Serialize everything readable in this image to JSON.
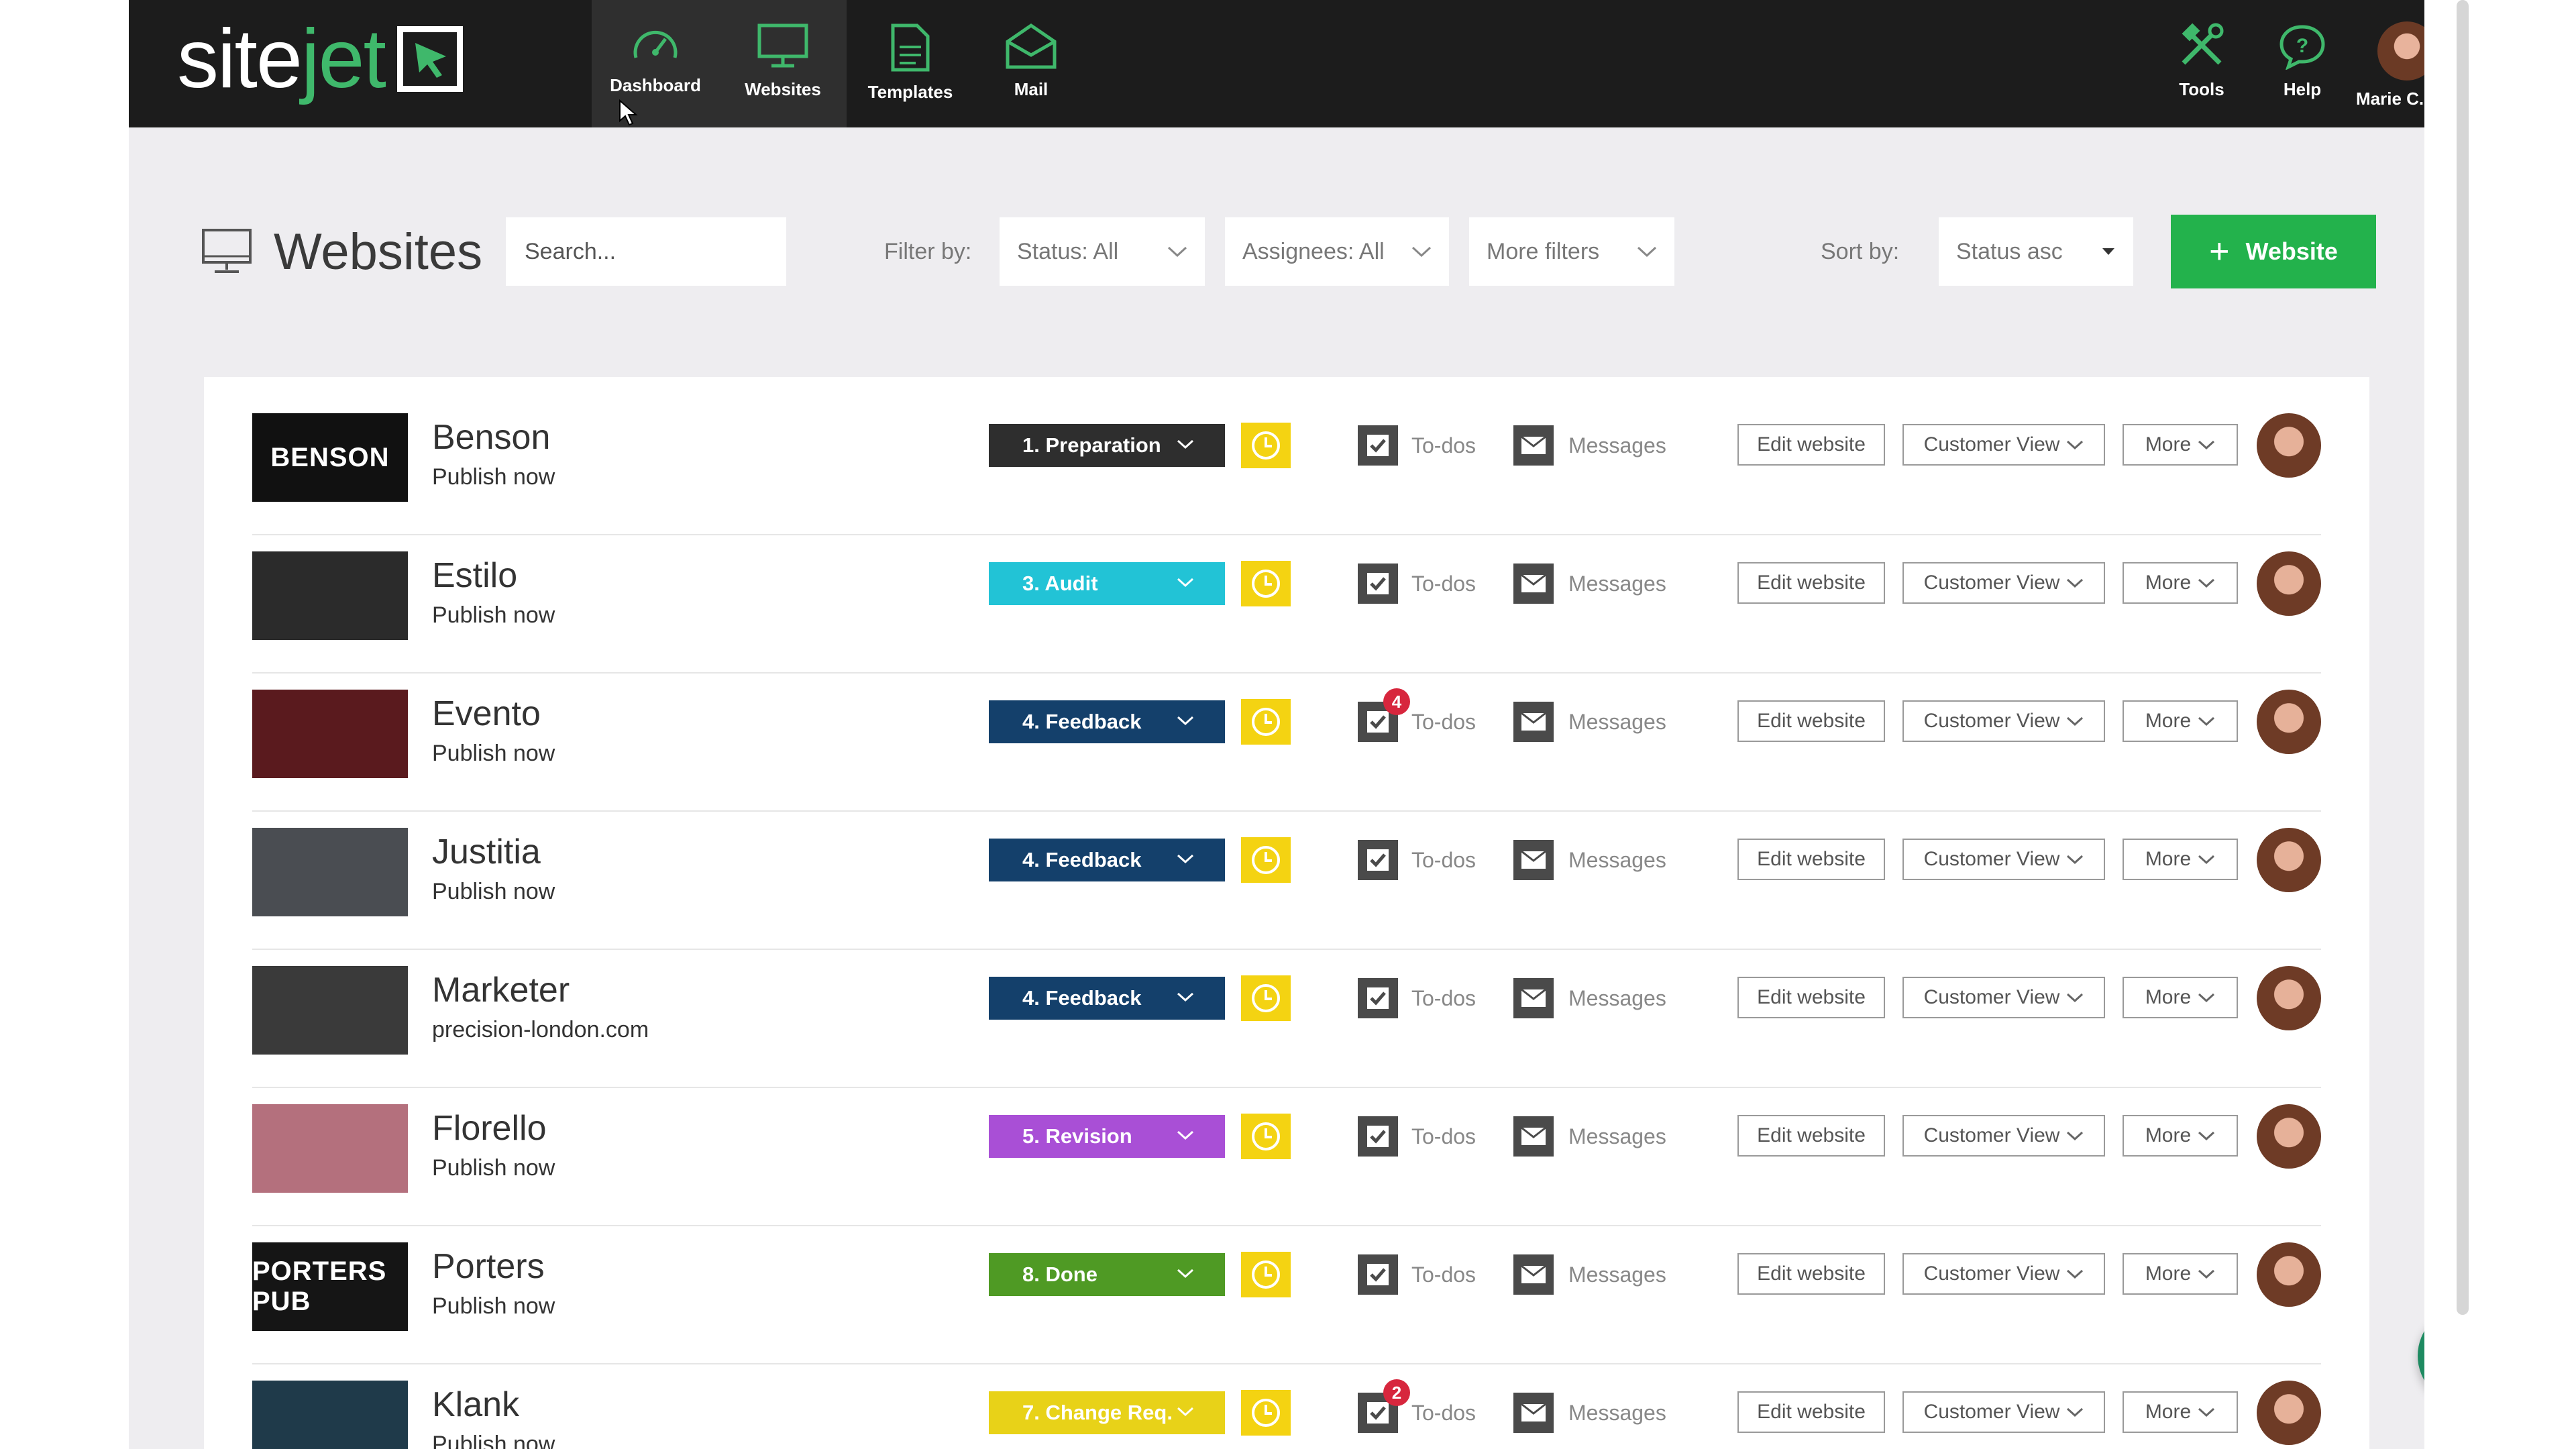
{
  "app": {
    "logo": {
      "part1": "site",
      "part2": "jet"
    },
    "nav": [
      {
        "label": "Dashboard",
        "icon": "speedometer-icon"
      },
      {
        "label": "Websites",
        "icon": "monitor-icon"
      },
      {
        "label": "Templates",
        "icon": "document-icon"
      },
      {
        "label": "Mail",
        "icon": "envelope-icon"
      }
    ],
    "right_nav": [
      {
        "label": "Tools",
        "icon": "tools-icon"
      },
      {
        "label": "Help",
        "icon": "help-bubble-icon"
      },
      {
        "label": "Marie C.",
        "icon": "avatar"
      }
    ]
  },
  "toolbar": {
    "title": "Websites",
    "search_placeholder": "Search...",
    "filter_label": "Filter by:",
    "status_filter": "Status: All",
    "assignees_filter": "Assignees: All",
    "more_filters": "More filters",
    "sort_label": "Sort by:",
    "sort_value": "Status asc",
    "add_button": "Website"
  },
  "labels": {
    "todos": "To-dos",
    "messages": "Messages",
    "edit": "Edit website",
    "customer_view": "Customer View",
    "more": "More"
  },
  "sites": [
    {
      "name": "Benson",
      "sub": "Publish now",
      "status": "1. Preparation",
      "status_color": "#2e2e2e",
      "thumb_text": "BENSON",
      "thumb_bg": "#111111",
      "todo_badge": ""
    },
    {
      "name": "Estilo",
      "sub": "Publish now",
      "status": "3. Audit",
      "status_color": "#22c3d6",
      "thumb_text": "",
      "thumb_bg": "#2b2b2b",
      "todo_badge": ""
    },
    {
      "name": "Evento",
      "sub": "Publish now",
      "status": "4. Feedback",
      "status_color": "#14406b",
      "thumb_text": "",
      "thumb_bg": "#5a1a1e",
      "todo_badge": "4"
    },
    {
      "name": "Justitia",
      "sub": "Publish now",
      "status": "4. Feedback",
      "status_color": "#14406b",
      "thumb_text": "",
      "thumb_bg": "#4a4d52",
      "todo_badge": ""
    },
    {
      "name": "Marketer",
      "sub": "precision-london.com",
      "status": "4. Feedback",
      "status_color": "#14406b",
      "thumb_text": "",
      "thumb_bg": "#3a3a3a",
      "todo_badge": ""
    },
    {
      "name": "Florello",
      "sub": "Publish now",
      "status": "5. Revision",
      "status_color": "#a94fd6",
      "thumb_text": "",
      "thumb_bg": "#b4707d",
      "todo_badge": ""
    },
    {
      "name": "Porters",
      "sub": "Publish now",
      "status": "8. Done",
      "status_color": "#4f9a24",
      "thumb_text": "PORTERS PUB",
      "thumb_bg": "#151515",
      "todo_badge": ""
    },
    {
      "name": "Klank",
      "sub": "Publish now",
      "status": "7. Change Req.",
      "status_color": "#e8d218",
      "thumb_text": "",
      "thumb_bg": "#1f3a4a",
      "todo_badge": "2"
    }
  ],
  "help_fab": "?"
}
